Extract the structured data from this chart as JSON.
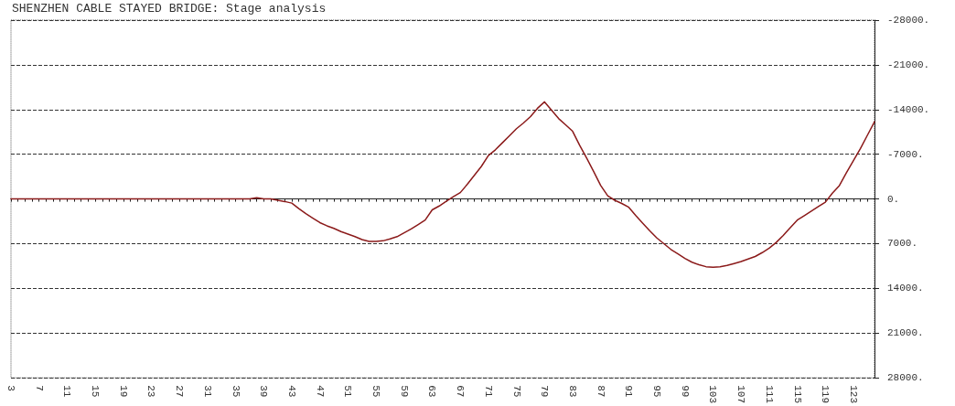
{
  "chart_data": {
    "type": "line",
    "title": "SHENZHEN CABLE STAYED BRIDGE: Stage analysis",
    "categories": [
      "3",
      null,
      null,
      null,
      "7",
      null,
      null,
      null,
      "11",
      null,
      null,
      null,
      "15",
      null,
      null,
      null,
      "19",
      null,
      null,
      null,
      "23",
      null,
      null,
      null,
      "27",
      null,
      null,
      null,
      "31",
      null,
      null,
      null,
      "35",
      null,
      null,
      null,
      "39",
      null,
      null,
      null,
      "43",
      null,
      null,
      null,
      "47",
      null,
      null,
      null,
      "51",
      null,
      null,
      null,
      "55",
      null,
      null,
      null,
      "59",
      null,
      null,
      null,
      "63",
      null,
      null,
      null,
      "67",
      null,
      null,
      null,
      "71",
      null,
      null,
      null,
      "75",
      null,
      null,
      null,
      "79",
      null,
      null,
      null,
      "83",
      null,
      null,
      null,
      "87",
      null,
      null,
      null,
      "91",
      null,
      null,
      null,
      "95",
      null,
      null,
      null,
      "99",
      null,
      null,
      null,
      "103",
      null,
      null,
      null,
      "107",
      null,
      null,
      null,
      "111",
      null,
      null,
      null,
      "115",
      null,
      null,
      null,
      "119",
      null,
      null,
      null,
      "123",
      null,
      null,
      null
    ],
    "series": [
      {
        "color": "#8b1a1a",
        "values": [
          0,
          0,
          0,
          0,
          0,
          0,
          0,
          0,
          0,
          0,
          0,
          0,
          0,
          0,
          0,
          0,
          0,
          0,
          0,
          0,
          0,
          0,
          0,
          0,
          0,
          0,
          0,
          0,
          0,
          0,
          0,
          0,
          0,
          0,
          0,
          -200,
          0,
          0,
          200,
          400,
          650,
          1500,
          2300,
          3000,
          3700,
          4200,
          4600,
          5100,
          5500,
          5900,
          6350,
          6650,
          6650,
          6550,
          6250,
          5900,
          5300,
          4700,
          4000,
          3300,
          1700,
          1100,
          350,
          -350,
          -1000,
          -2300,
          -3700,
          -5100,
          -6800,
          -7700,
          -8800,
          -9900,
          -11000,
          -11900,
          -12900,
          -14200,
          -15200,
          -13900,
          -12600,
          -11600,
          -10600,
          -8400,
          -6400,
          -4300,
          -2100,
          -500,
          200,
          700,
          1300,
          2600,
          3800,
          5000,
          6100,
          7000,
          7900,
          8600,
          9300,
          9900,
          10300,
          10600,
          10700,
          10600,
          10400,
          10100,
          9800,
          9400,
          9000,
          8400,
          7700,
          6800,
          5700,
          4500,
          3300,
          2600,
          1900,
          1200,
          500,
          -900,
          -2100,
          -4100,
          -6000,
          -7900,
          -10000,
          -12100
        ]
      }
    ],
    "ylim": [
      28000,
      -28000
    ],
    "yticks": [
      {
        "value": -28000,
        "label": "-28000."
      },
      {
        "value": -21000,
        "label": "-21000."
      },
      {
        "value": -14000,
        "label": "-14000."
      },
      {
        "value": -7000,
        "label": "-7000."
      },
      {
        "value": 0,
        "label": "0."
      },
      {
        "value": 7000,
        "label": "7000."
      },
      {
        "value": 14000,
        "label": "14000."
      },
      {
        "value": 21000,
        "label": "21000."
      },
      {
        "value": 28000,
        "label": "28000."
      }
    ],
    "grid": "y",
    "marker": "none",
    "line_style": "solid"
  }
}
